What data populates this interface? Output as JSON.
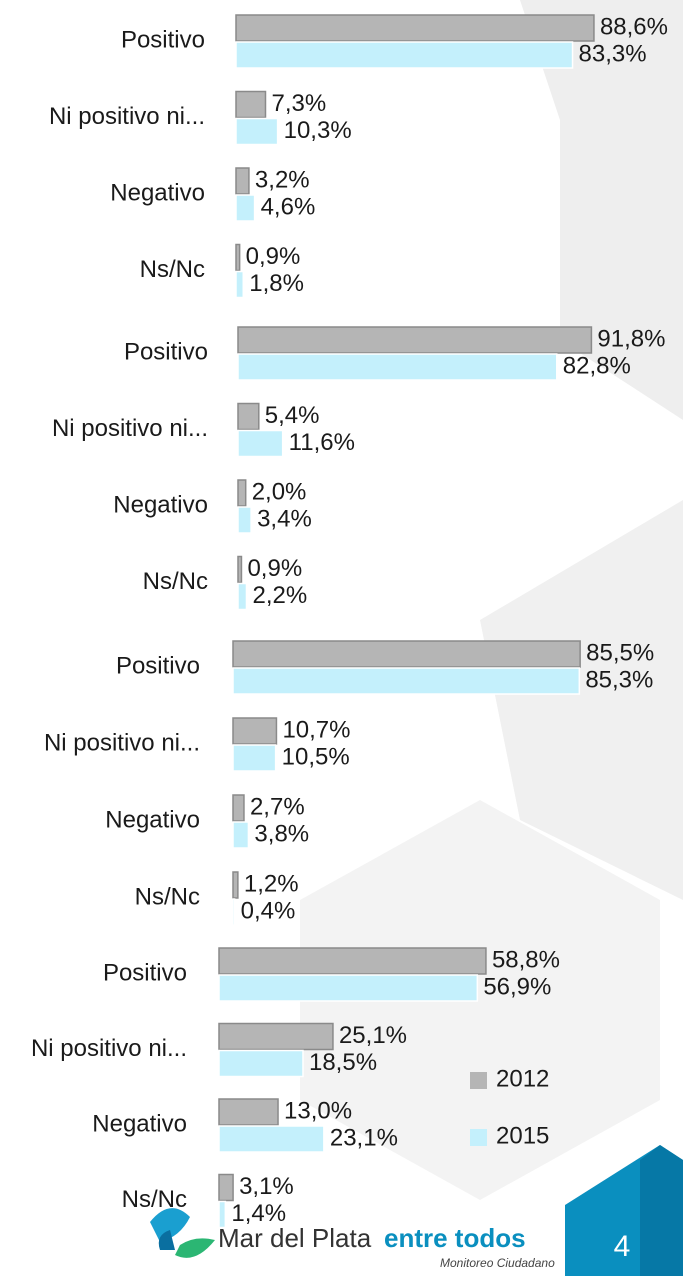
{
  "chart_data": [
    {
      "type": "bar",
      "categories": [
        "Positivo",
        "Ni positivo ni...",
        "Negativo",
        "Ns/Nc"
      ],
      "series": [
        {
          "values": [
            88.6,
            7.3,
            3.2,
            0.9
          ],
          "value_labels": [
            "88,6%",
            "7,3%",
            "3,2%",
            "0,9%"
          ]
        },
        {
          "values": [
            83.3,
            10.3,
            4.6,
            1.8
          ],
          "value_labels": [
            "83,3%",
            "10,3%",
            "4,6%",
            "1,8%"
          ]
        }
      ]
    },
    {
      "type": "bar",
      "categories": [
        "Positivo",
        "Ni positivo ni...",
        "Negativo",
        "Ns/Nc"
      ],
      "series": [
        {
          "values": [
            91.8,
            5.4,
            2.0,
            0.9
          ],
          "value_labels": [
            "91,8%",
            "5,4%",
            "2,0%",
            "0,9%"
          ]
        },
        {
          "values": [
            82.8,
            11.6,
            3.4,
            2.2
          ],
          "value_labels": [
            "82,8%",
            "11,6%",
            "3,4%",
            "2,2%"
          ]
        }
      ]
    },
    {
      "type": "bar",
      "categories": [
        "Positivo",
        "Ni positivo ni...",
        "Negativo",
        "Ns/Nc"
      ],
      "series": [
        {
          "values": [
            85.5,
            10.7,
            2.7,
            1.2
          ],
          "value_labels": [
            "85,5%",
            "10,7%",
            "2,7%",
            "1,2%"
          ]
        },
        {
          "values": [
            85.3,
            10.5,
            3.8,
            0.4
          ],
          "value_labels": [
            "85,3%",
            "10,5%",
            "3,8%",
            "0,4%"
          ]
        }
      ]
    },
    {
      "type": "bar",
      "categories": [
        "Positivo",
        "Ni positivo ni...",
        "Negativo",
        "Ns/Nc"
      ],
      "series": [
        {
          "name": "2012",
          "color": "#b5b5b5",
          "values": [
            58.8,
            25.1,
            13.0,
            3.1
          ],
          "value_labels": [
            "58,8%",
            "25,1%",
            "13,0%",
            "3,1%"
          ]
        },
        {
          "name": "2015",
          "color": "#c4f0fc",
          "values": [
            56.9,
            18.5,
            23.1,
            1.4
          ],
          "value_labels": [
            "56,9%",
            "18,5%",
            "23,1%",
            "1,4%"
          ]
        }
      ]
    }
  ],
  "footer": {
    "brand": "Mar del Plata",
    "brand_accent": "entre todos",
    "tagline": "Monitoreo Ciudadano",
    "page_number": "4"
  }
}
